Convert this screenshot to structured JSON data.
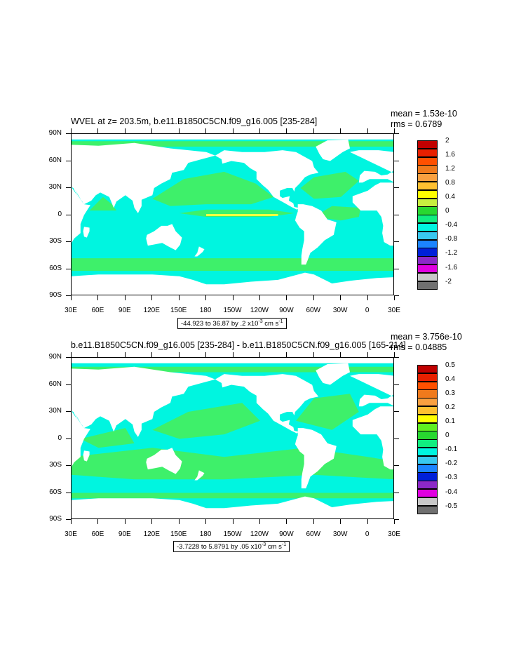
{
  "panels": [
    {
      "title": "WVEL at z= 203.5m, b.e11.B1850C5CN.f09_g16.005 [235-284]",
      "mean": "mean = 1.53e-10",
      "rms": "rms = 0.6789",
      "range_text": "-44.923 to 36.87 by .2 x10",
      "range_exp": "-3",
      "range_unit": " cm s",
      "range_unit_exp": "-1",
      "lat_labels": [
        "90N",
        "60N",
        "30N",
        "0",
        "30S",
        "60S",
        "90S"
      ],
      "lon_labels": [
        "30E",
        "60E",
        "90E",
        "120E",
        "150E",
        "180",
        "150W",
        "120W",
        "90W",
        "60W",
        "30W",
        "0",
        "30E"
      ],
      "colorbar_labels": [
        "2",
        "1.6",
        "1.2",
        "0.8",
        "0.4",
        "0",
        "-0.4",
        "-0.8",
        "-1.2",
        "-1.6",
        "-2"
      ],
      "colorbar_colors": [
        "#c00000",
        "#e82000",
        "#ff5000",
        "#f07a1c",
        "#f9a040",
        "#ffc030",
        "#ffff00",
        "#c8f040",
        "#28d830",
        "#10ee80",
        "#00f5e0",
        "#38c8f0",
        "#1c84ff",
        "#0020d8",
        "#8c28c8",
        "#e000e0",
        "#c8c8c8",
        "#707070"
      ]
    },
    {
      "title": "b.e11.B1850C5CN.f09_g16.005 [235-284] - b.e11.B1850C5CN.f09_g16.005 [165-214]",
      "mean": "mean = 3.756e-10",
      "rms": "rms = 0.04885",
      "range_text": "-3.7228 to 5.8791 by .05 x10",
      "range_exp": "-3",
      "range_unit": " cm s",
      "range_unit_exp": "-1",
      "lat_labels": [
        "90N",
        "60N",
        "30N",
        "0",
        "30S",
        "60S",
        "90S"
      ],
      "lon_labels": [
        "30E",
        "60E",
        "90E",
        "120E",
        "150E",
        "180",
        "150W",
        "120W",
        "90W",
        "60W",
        "30W",
        "0",
        "30E"
      ],
      "colorbar_labels": [
        "0.5",
        "0.4",
        "0.3",
        "0.2",
        "0.1",
        "0",
        "-0.1",
        "-0.2",
        "-0.3",
        "-0.4",
        "-0.5"
      ],
      "colorbar_colors": [
        "#c00000",
        "#e82000",
        "#ff5000",
        "#f07a1c",
        "#f9a040",
        "#ffc030",
        "#ffff00",
        "#60f020",
        "#28d830",
        "#10ee80",
        "#00f5e0",
        "#38c8f0",
        "#1c84ff",
        "#0020d8",
        "#8c28c8",
        "#e000e0",
        "#c8c8c8",
        "#707070"
      ]
    }
  ],
  "colors": {
    "ocean_main": "#00f5e0",
    "ocean_alt": "#3ef06a",
    "land": "#ffffff",
    "enso_band": "#ffff40"
  }
}
